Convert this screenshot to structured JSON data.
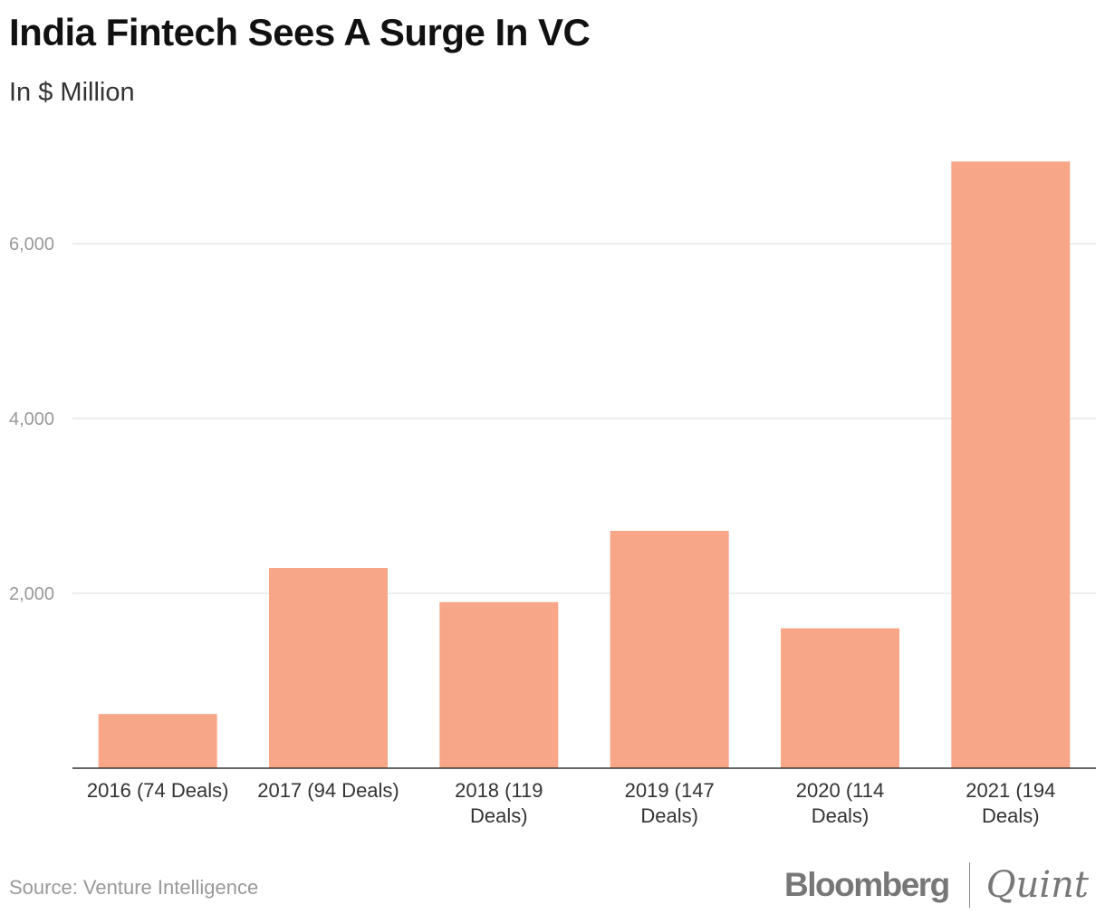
{
  "title": "India Fintech Sees A Surge In VC",
  "subtitle": "In $ Million",
  "source": "Source: Venture Intelligence",
  "logo": {
    "left": "Bloomberg",
    "right": "Quint"
  },
  "chart_data": {
    "type": "bar",
    "categories": [
      "2016 (74 Deals)",
      "2017 (94 Deals)",
      "2018 (119 Deals)",
      "2019 (147 Deals)",
      "2020 (114 Deals)",
      "2021 (194 Deals)"
    ],
    "values": [
      620,
      2290,
      1900,
      2715,
      1600,
      6940
    ],
    "ylim": [
      0,
      7000
    ],
    "yticks": [
      2000,
      4000,
      6000
    ],
    "ytick_labels": [
      "2,000",
      "4,000",
      "6,000"
    ],
    "grid": true,
    "bar_color": "#f7a688"
  }
}
